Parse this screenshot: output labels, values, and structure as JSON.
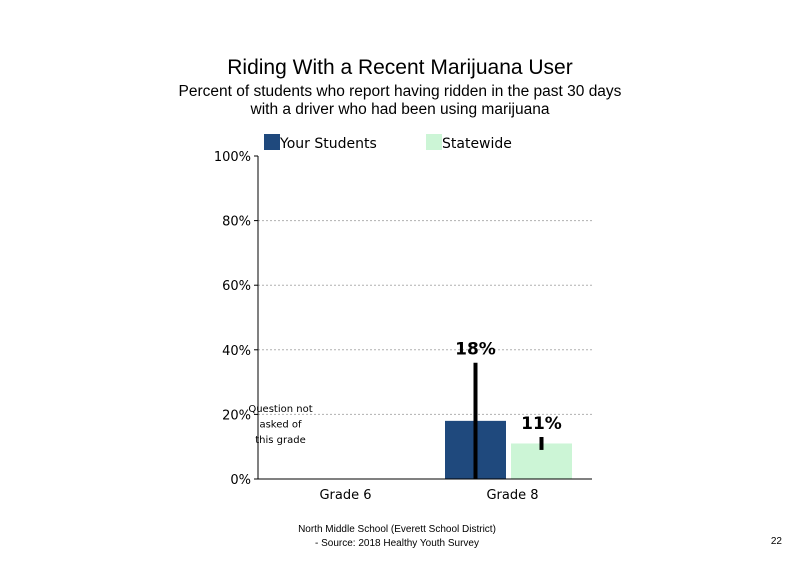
{
  "title": "Riding With a Recent Marijuana User",
  "subtitle_line1": "Percent of students who report having ridden in the past 30 days",
  "subtitle_line2": "with a driver who had been using marijuana",
  "footer_line1": "North Middle School (Everett School District)",
  "footer_line2": "- Source: 2018 Healthy  Youth Survey",
  "page_number": "22",
  "colors": {
    "your_students": "#1f497d",
    "statewide": "#ccf5d6",
    "grid": "#b0b0b0",
    "error_bar": "#000000"
  },
  "chart_data": {
    "type": "bar",
    "categories": [
      "Grade 6",
      "Grade 8"
    ],
    "series": [
      {
        "name": "Your Students",
        "values": [
          null,
          18
        ],
        "labels": [
          "",
          "18%"
        ],
        "error_low": [
          null,
          0
        ],
        "error_high": [
          null,
          36
        ]
      },
      {
        "name": "Statewide",
        "values": [
          null,
          11
        ],
        "labels": [
          "",
          "11%"
        ],
        "error_low": [
          null,
          9
        ],
        "error_high": [
          null,
          13
        ]
      }
    ],
    "y_ticks": [
      0,
      20,
      40,
      60,
      80,
      100
    ],
    "y_tick_labels": [
      "0%",
      "20%",
      "40%",
      "60%",
      "80%",
      "100%"
    ],
    "ylim": [
      0,
      100
    ],
    "grid": true,
    "legend_position": "top",
    "annotation": {
      "category": "Grade 6",
      "lines": [
        "Question not",
        "asked of",
        "this grade"
      ]
    }
  }
}
